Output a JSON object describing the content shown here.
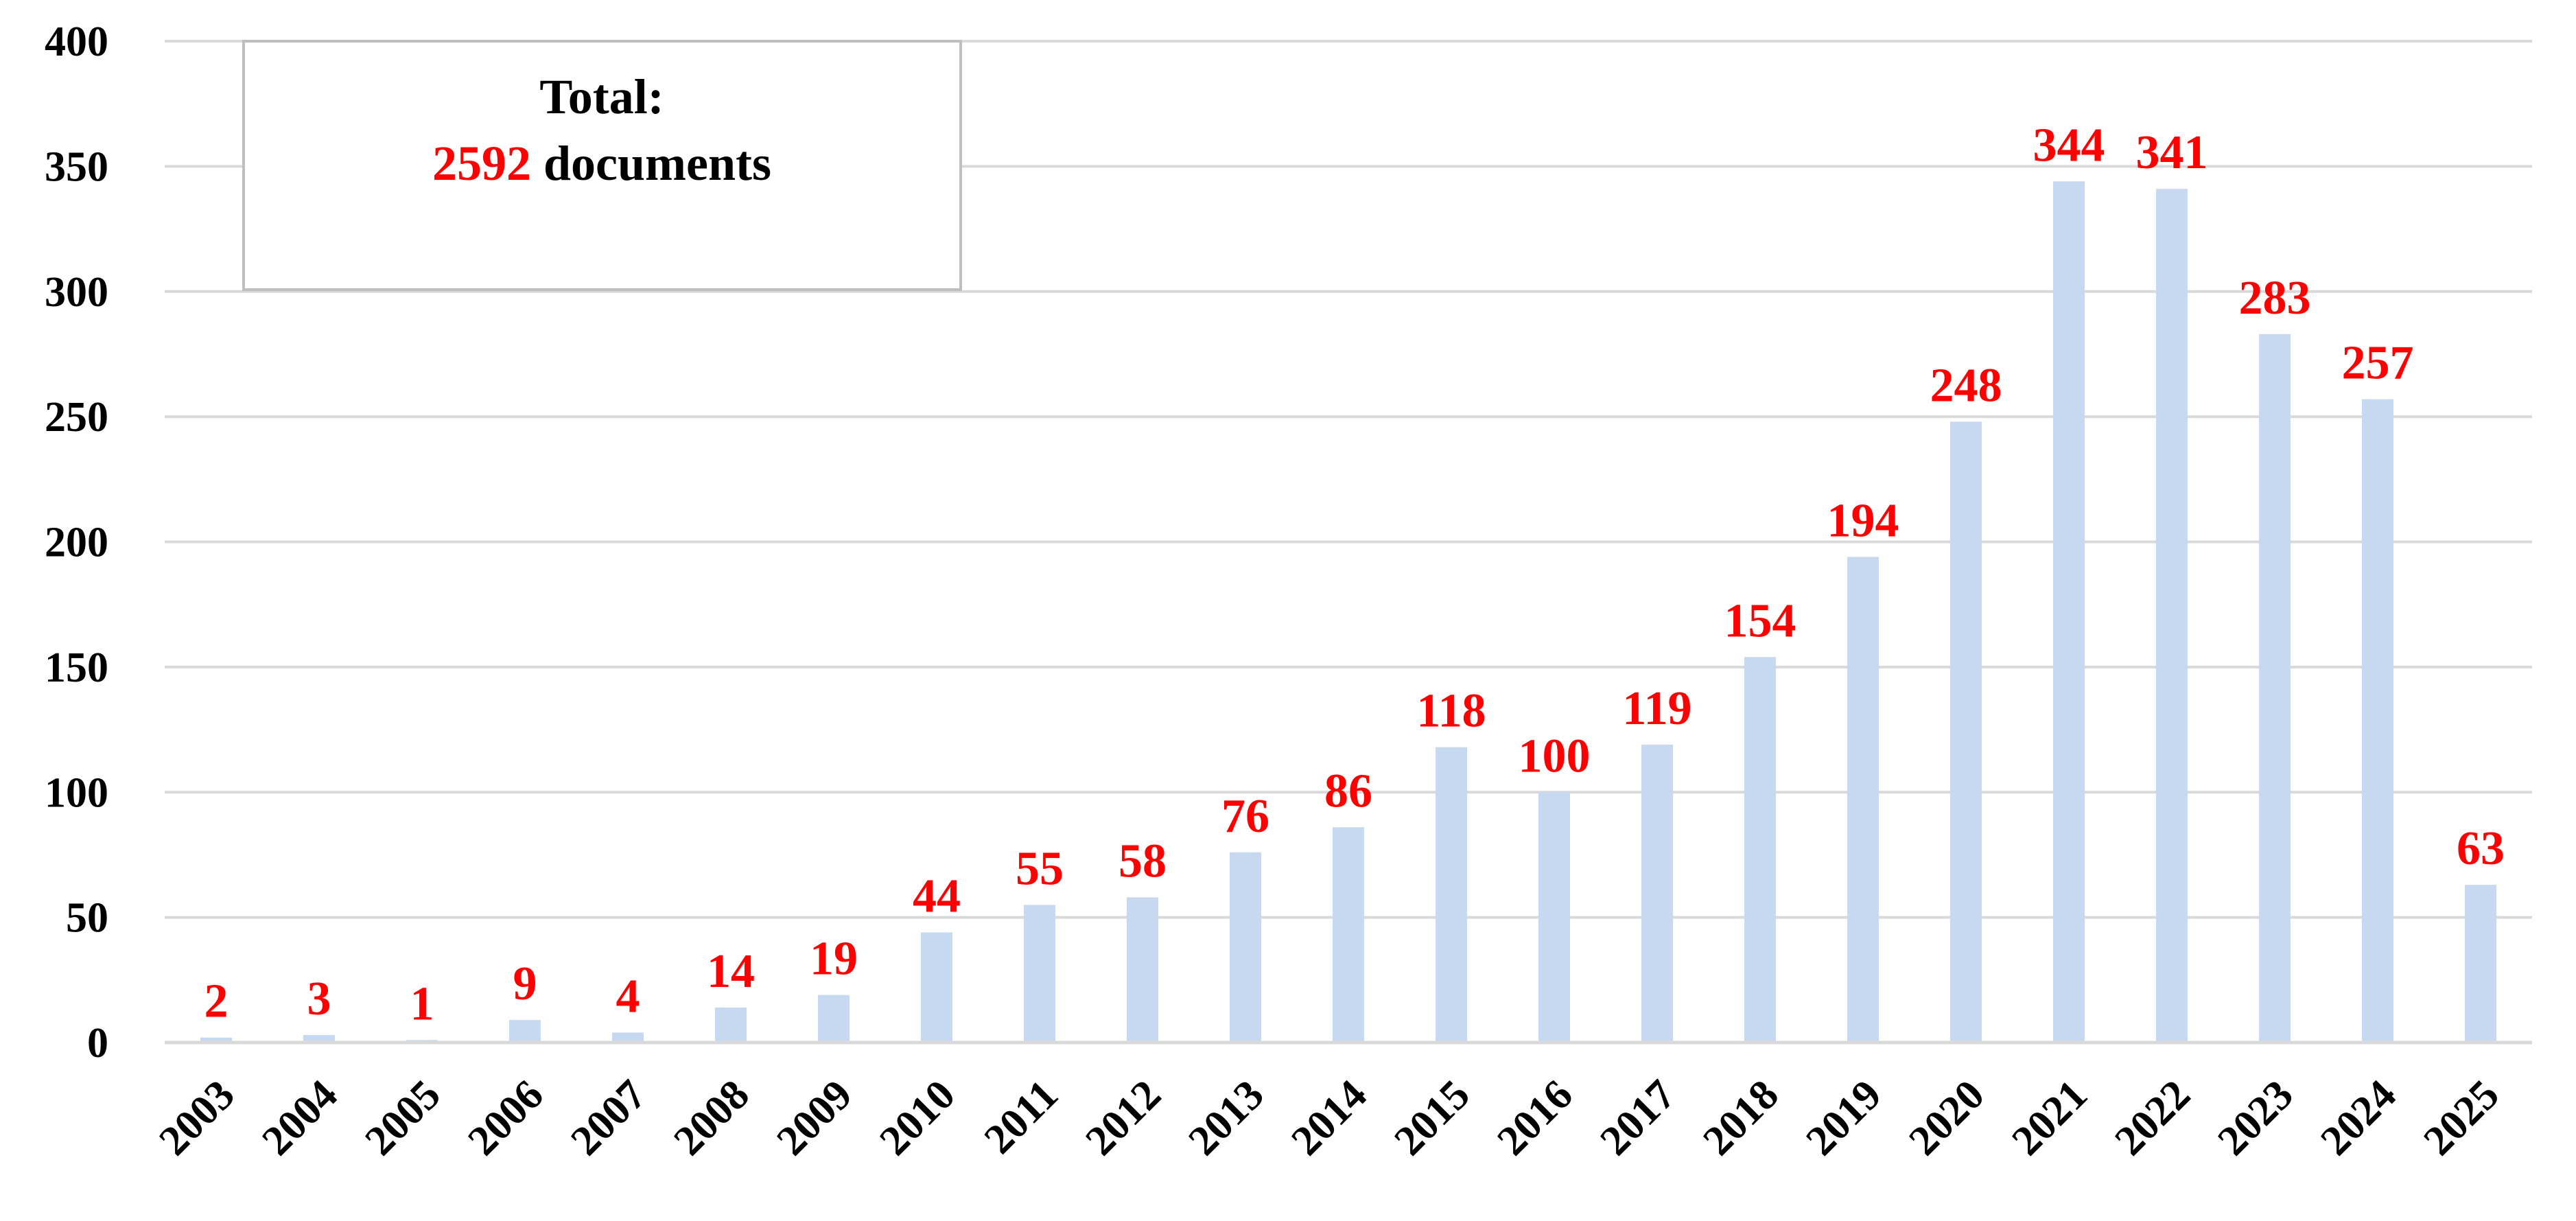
{
  "chart_data": {
    "type": "bar",
    "categories": [
      "2003",
      "2004",
      "2005",
      "2006",
      "2007",
      "2008",
      "2009",
      "2010",
      "2011",
      "2012",
      "2013",
      "2014",
      "2015",
      "2016",
      "2017",
      "2018",
      "2019",
      "2020",
      "2021",
      "2022",
      "2023",
      "2024",
      "2025"
    ],
    "values": [
      2,
      3,
      1,
      9,
      4,
      14,
      19,
      44,
      55,
      58,
      76,
      86,
      118,
      100,
      119,
      154,
      194,
      248,
      344,
      341,
      283,
      257,
      63
    ],
    "data_labels": [
      "2",
      "3",
      "1",
      "9",
      "4",
      "14",
      "19",
      "44",
      "55",
      "58",
      "76",
      "86",
      "118",
      "100",
      "119",
      "154",
      "194",
      "248",
      "344",
      "341",
      "283",
      "257",
      "63"
    ],
    "y_ticks": [
      "0",
      "50",
      "100",
      "150",
      "200",
      "250",
      "300",
      "350",
      "400"
    ],
    "y_tick_values": [
      0,
      50,
      100,
      150,
      200,
      250,
      300,
      350,
      400
    ],
    "ylim": [
      0,
      400
    ],
    "title": "",
    "xlabel": "",
    "ylabel": "",
    "grid": true,
    "legend": "none",
    "bar_color": "#c6d9f1",
    "label_color": "#ff0000",
    "x_tick_rotation_deg": -45,
    "annotation": {
      "line1": "Total:",
      "count": "2592",
      "suffix": " documents",
      "count_color": "#ff0000",
      "placement": "top-left"
    }
  }
}
